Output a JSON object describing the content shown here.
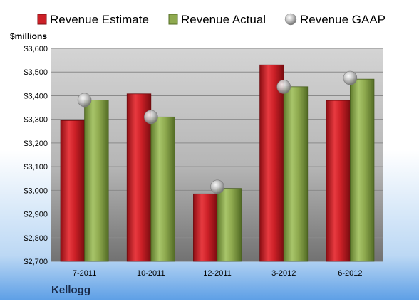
{
  "chart_data": {
    "type": "bar",
    "company": "Kellogg",
    "ylabel": "$millions",
    "categories": [
      "7-2011",
      "10-2011",
      "12-2011",
      "3-2012",
      "6-2012"
    ],
    "ylim": [
      2700,
      3600
    ],
    "yticks": [
      2700,
      2800,
      2900,
      3000,
      3100,
      3200,
      3300,
      3400,
      3500,
      3600
    ],
    "ytick_labels": [
      "$2,700",
      "$2,800",
      "$2,900",
      "$3,000",
      "$3,100",
      "$3,200",
      "$3,300",
      "$3,400",
      "$3,500",
      "$3,600"
    ],
    "grid": true,
    "legend_position": "top",
    "series": [
      {
        "name": "Revenue Estimate",
        "kind": "bar",
        "color": "#cc2027",
        "values": [
          3295,
          3408,
          2985,
          3530,
          3380
        ]
      },
      {
        "name": "Revenue Actual",
        "kind": "bar",
        "color": "#8faa4f",
        "values": [
          3382,
          3310,
          3008,
          3438,
          3470
        ]
      },
      {
        "name": "Revenue GAAP",
        "kind": "marker",
        "color": "#b8b8b8",
        "values": [
          3382,
          3310,
          3015,
          3438,
          3475
        ]
      }
    ]
  }
}
